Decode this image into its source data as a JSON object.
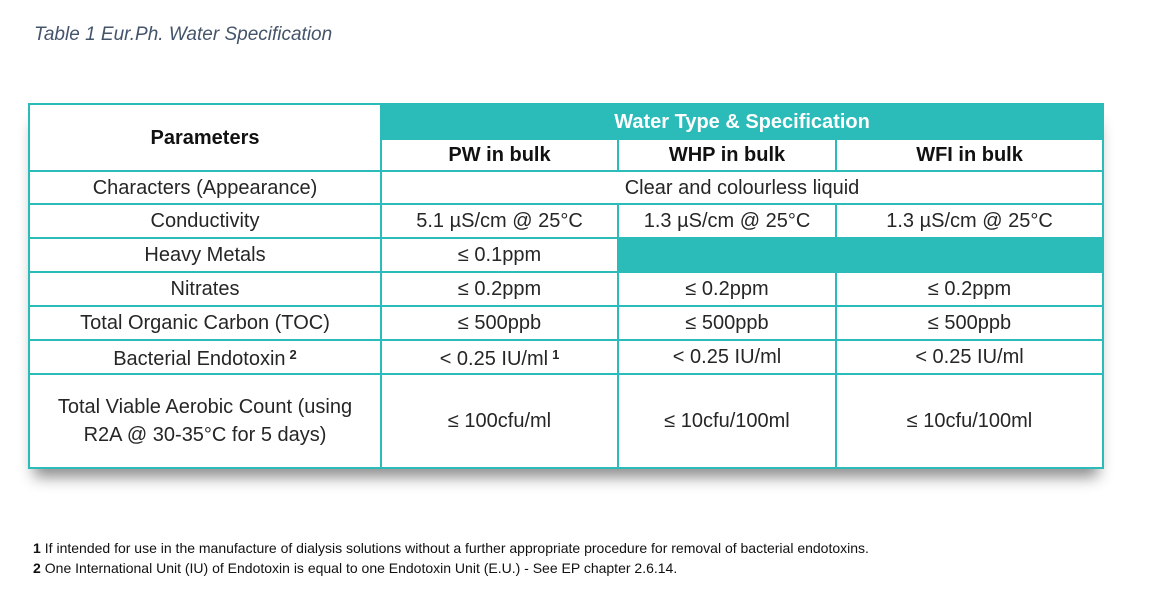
{
  "caption": "Table 1 Eur.Ph. Water Specification",
  "table": {
    "parameters_header": "Parameters",
    "group_header": "Water Type & Specification",
    "columns": [
      "PW in bulk",
      "WHP in bulk",
      "WFI in bulk"
    ],
    "rows": [
      {
        "parameter": "Characters (Appearance)",
        "merged": "Clear and colourless liquid"
      },
      {
        "parameter": "Conductivity",
        "values": [
          "5.1 µS/cm @ 25°C",
          "1.3 µS/cm @ 25°C",
          "1.3 µS/cm @ 25°C"
        ]
      },
      {
        "parameter": "Heavy Metals",
        "values": [
          "≤ 0.1ppm"
        ]
      },
      {
        "parameter": "Nitrates",
        "values": [
          "≤ 0.2ppm",
          "≤ 0.2ppm",
          "≤ 0.2ppm"
        ]
      },
      {
        "parameter": "Total Organic Carbon (TOC)",
        "values": [
          "≤ 500ppb",
          "≤ 500ppb",
          "≤ 500ppb"
        ]
      },
      {
        "parameter": "Bacterial Endotoxin",
        "parameter_note": "2",
        "values": [
          "< 0.25 IU/ml",
          "< 0.25 IU/ml",
          "< 0.25 IU/ml"
        ],
        "value_notes": [
          "1"
        ]
      },
      {
        "parameter": "Total Viable Aerobic Count (using R2A @ 30-35°C for 5 days)",
        "values": [
          "≤ 100cfu/ml",
          "≤ 10cfu/100ml",
          "≤ 10cfu/100ml"
        ]
      }
    ]
  },
  "footnotes": [
    {
      "number": "1",
      "text": "If intended for use in the manufacture of dialysis solutions without a further appropriate procedure for removal of bacterial endotoxins."
    },
    {
      "number": "2",
      "text": "One International Unit (IU) of Endotoxin is equal to one Endotoxin Unit (E.U.) - See EP chapter 2.6.14."
    }
  ]
}
